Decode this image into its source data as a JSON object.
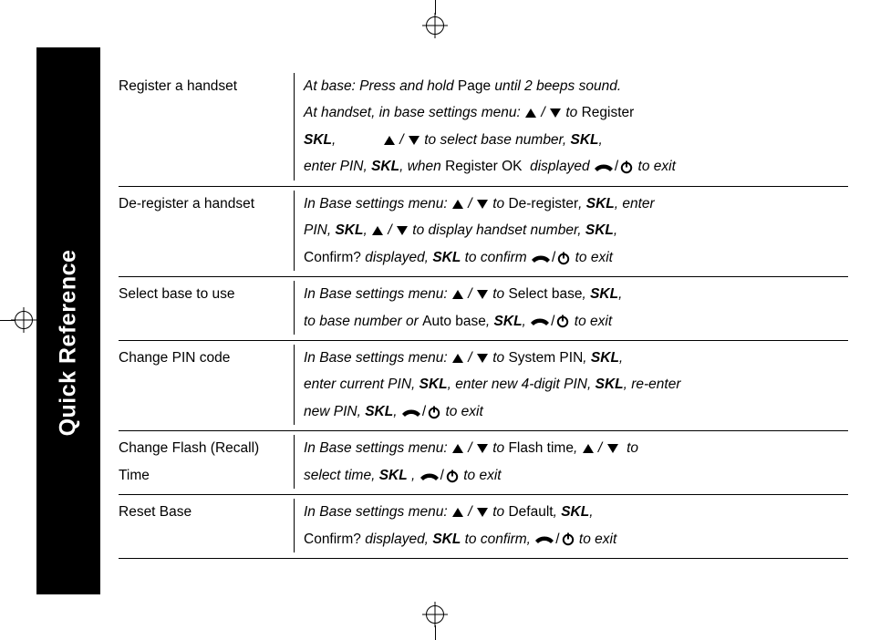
{
  "tab": {
    "label": "Quick Reference"
  },
  "rows": [
    {
      "label": "Register a handset",
      "lines": [
        [
          {
            "t": "At base: Press and hold "
          },
          {
            "rm": "Page"
          },
          {
            "t": " until 2 beeps sound."
          }
        ],
        [
          {
            "t": "At handset, in base settings menu: "
          },
          {
            "up": true
          },
          {
            "t": " / "
          },
          {
            "down": true
          },
          {
            "t": " to "
          },
          {
            "rm": "Register"
          }
        ],
        [
          {
            "skl": "SKL"
          },
          {
            "t": ",            "
          },
          {
            "up": true
          },
          {
            "t": " / "
          },
          {
            "down": true
          },
          {
            "t": " to select base number, "
          },
          {
            "skl": "SKL"
          },
          {
            "t": ","
          }
        ],
        [
          {
            "t": "enter PIN, "
          },
          {
            "skl": "SKL"
          },
          {
            "t": ", when "
          },
          {
            "rm": "Register OK"
          },
          {
            "t": "  displayed "
          },
          {
            "hang": true
          },
          {
            "slash": "/"
          },
          {
            "pwr": true
          },
          {
            "t": " to exit"
          }
        ]
      ]
    },
    {
      "label": "De-register a handset",
      "lines": [
        [
          {
            "t": "In Base settings menu: "
          },
          {
            "up": true
          },
          {
            "t": " / "
          },
          {
            "down": true
          },
          {
            "t": " to "
          },
          {
            "rm": "De-register"
          },
          {
            "t": ", "
          },
          {
            "skl": "SKL"
          },
          {
            "t": ", enter"
          }
        ],
        [
          {
            "t": "PIN, "
          },
          {
            "skl": "SKL"
          },
          {
            "t": ", "
          },
          {
            "up": true
          },
          {
            "t": " / "
          },
          {
            "down": true
          },
          {
            "t": " to display handset number, "
          },
          {
            "skl": "SKL"
          },
          {
            "t": ","
          }
        ],
        [
          {
            "rm": "Confirm?"
          },
          {
            "t": " displayed, "
          },
          {
            "skl": "SKL"
          },
          {
            "t": " to confirm "
          },
          {
            "hang": true
          },
          {
            "slash": "/"
          },
          {
            "pwr": true
          },
          {
            "t": " to exit"
          }
        ]
      ]
    },
    {
      "label": "Select base to use",
      "lines": [
        [
          {
            "t": "In Base settings menu: "
          },
          {
            "up": true
          },
          {
            "t": " / "
          },
          {
            "down": true
          },
          {
            "t": " to "
          },
          {
            "rm": "Select base"
          },
          {
            "t": ", "
          },
          {
            "skl": "SKL"
          },
          {
            "t": ","
          }
        ],
        [
          {
            "t": "to base number or "
          },
          {
            "rm": "Auto base"
          },
          {
            "t": ", "
          },
          {
            "skl": "SKL"
          },
          {
            "t": ", "
          },
          {
            "hang": true
          },
          {
            "slash": "/"
          },
          {
            "pwr": true
          },
          {
            "t": " to exit"
          }
        ]
      ]
    },
    {
      "label": "Change PIN code",
      "lines": [
        [
          {
            "t": "In Base settings menu: "
          },
          {
            "up": true
          },
          {
            "t": " / "
          },
          {
            "down": true
          },
          {
            "t": " to "
          },
          {
            "rm": "System PIN"
          },
          {
            "t": ", "
          },
          {
            "skl": "SKL"
          },
          {
            "t": ","
          }
        ],
        [
          {
            "t": "enter current PIN, "
          },
          {
            "skl": "SKL"
          },
          {
            "t": ", enter new 4-digit PIN, "
          },
          {
            "skl": "SKL"
          },
          {
            "t": ", re-enter"
          }
        ],
        [
          {
            "t": "new PIN, "
          },
          {
            "skl": "SKL"
          },
          {
            "t": ", "
          },
          {
            "hang": true
          },
          {
            "slash": "/"
          },
          {
            "pwr": true
          },
          {
            "t": " to exit"
          }
        ]
      ]
    },
    {
      "label": "Change Flash (Recall) Time",
      "lines": [
        [
          {
            "t": "In Base settings menu: "
          },
          {
            "up": true
          },
          {
            "t": " / "
          },
          {
            "down": true
          },
          {
            "t": " to "
          },
          {
            "rm": "Flash time"
          },
          {
            "t": ", "
          },
          {
            "up": true
          },
          {
            "t": " / "
          },
          {
            "down": true
          },
          {
            "t": "  to"
          }
        ],
        [
          {
            "t": "select time, "
          },
          {
            "skl": "SKL"
          },
          {
            "t": " , "
          },
          {
            "hang": true
          },
          {
            "slash": "/"
          },
          {
            "pwr": true
          },
          {
            "t": " to exit"
          }
        ]
      ]
    },
    {
      "label": "Reset Base",
      "lines": [
        [
          {
            "t": "In Base settings menu: "
          },
          {
            "up": true
          },
          {
            "t": " / "
          },
          {
            "down": true
          },
          {
            "t": " to "
          },
          {
            "rm": "Default"
          },
          {
            "t": ", "
          },
          {
            "skl": "SKL"
          },
          {
            "t": ","
          }
        ],
        [
          {
            "rm": "Confirm?"
          },
          {
            "t": " displayed, "
          },
          {
            "skl": "SKL"
          },
          {
            "t": " to confirm, "
          },
          {
            "hang": true
          },
          {
            "slash": "/"
          },
          {
            "pwr": true
          },
          {
            "t": " to exit"
          }
        ]
      ]
    }
  ]
}
